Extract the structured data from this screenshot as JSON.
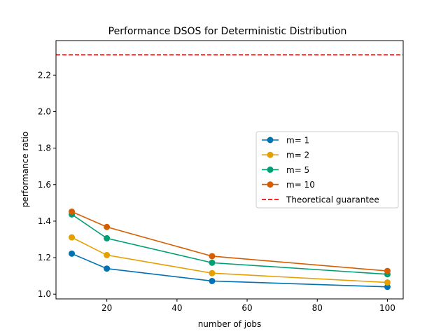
{
  "chart_data": {
    "type": "line",
    "title": "Performance DSOS for Deterministic Distribution",
    "xlabel": "number of jobs",
    "ylabel": "performance ratio",
    "x": [
      10,
      20,
      50,
      100
    ],
    "series": [
      {
        "name": "m= 1",
        "color": "#0072B2",
        "values": [
          1.222,
          1.14,
          1.072,
          1.04
        ]
      },
      {
        "name": "m= 2",
        "color": "#E69F00",
        "values": [
          1.311,
          1.214,
          1.115,
          1.064
        ]
      },
      {
        "name": "m= 5",
        "color": "#009E73",
        "values": [
          1.437,
          1.306,
          1.172,
          1.109
        ]
      },
      {
        "name": "m= 10",
        "color": "#D55E00",
        "values": [
          1.452,
          1.368,
          1.208,
          1.127
        ]
      }
    ],
    "reference_lines": [
      {
        "name": "Theoretical guarantee",
        "color": "#DD0000",
        "style": "dashed",
        "y": 2.311
      }
    ],
    "xlim": [
      5.5,
      104.5
    ],
    "ylim": [
      0.974,
      2.389
    ],
    "xticks": [
      20,
      40,
      60,
      80,
      100
    ],
    "xtick_labels": [
      "20",
      "40",
      "60",
      "80",
      "100"
    ],
    "yticks": [
      1.0,
      1.2,
      1.4,
      1.6,
      1.8,
      2.0,
      2.2
    ],
    "ytick_labels": [
      "1.0",
      "1.2",
      "1.4",
      "1.6",
      "1.8",
      "2.0",
      "2.2"
    ],
    "grid": false,
    "legend_position": "center-right"
  }
}
